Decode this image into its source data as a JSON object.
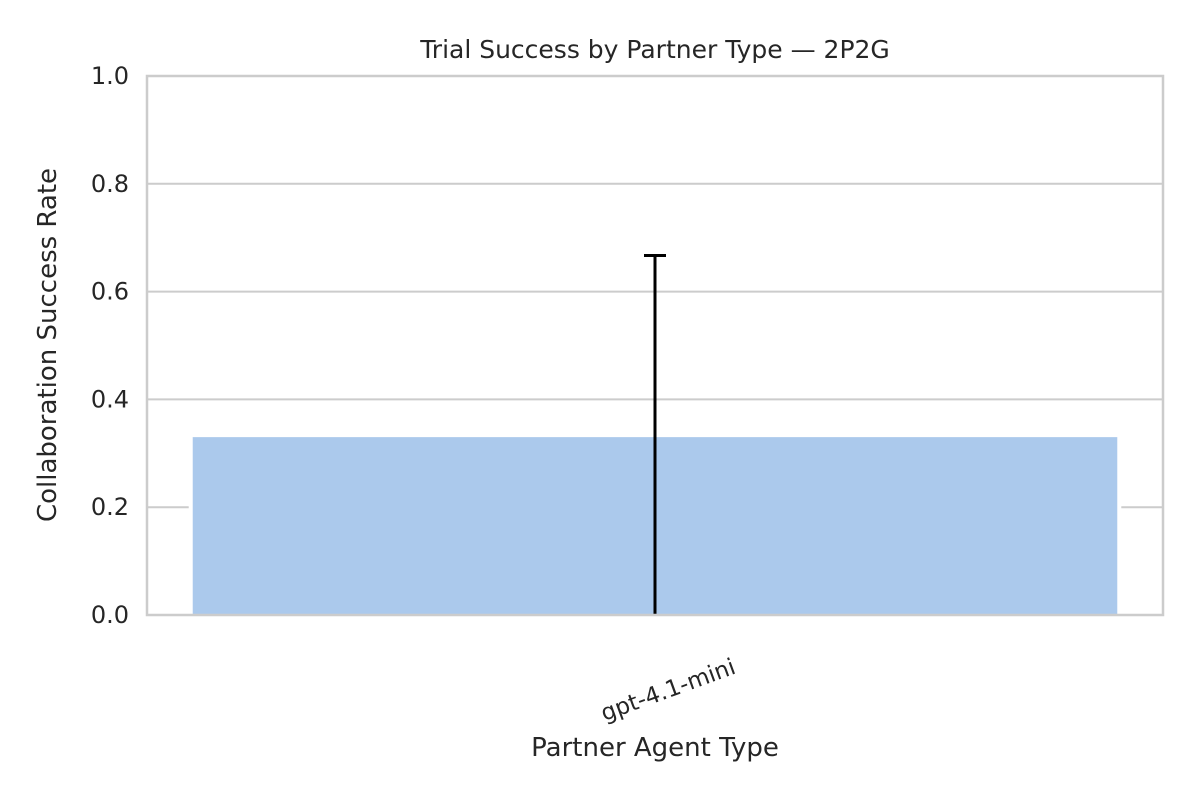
{
  "chart_data": {
    "type": "bar",
    "title": "Trial Success by Partner Type — 2P2G",
    "xlabel": "Partner Agent Type",
    "ylabel": "Collaboration Success Rate",
    "categories": [
      "gpt-4.1-mini"
    ],
    "values": [
      0.33
    ],
    "error_bars": [
      {
        "low": 0.0,
        "high": 0.667
      }
    ],
    "ylim": [
      0,
      1.0
    ],
    "yticks": [
      0.0,
      0.2,
      0.4,
      0.6,
      0.8,
      1.0
    ],
    "ytick_labels": [
      "0.0",
      "0.2",
      "0.4",
      "0.6",
      "0.8",
      "1.0"
    ],
    "grid": true,
    "colors": {
      "bar": "#abc9ec",
      "error_bar": "#000000",
      "grid": "#cccccc",
      "axes": "#cccccc",
      "text": "#262626"
    }
  }
}
